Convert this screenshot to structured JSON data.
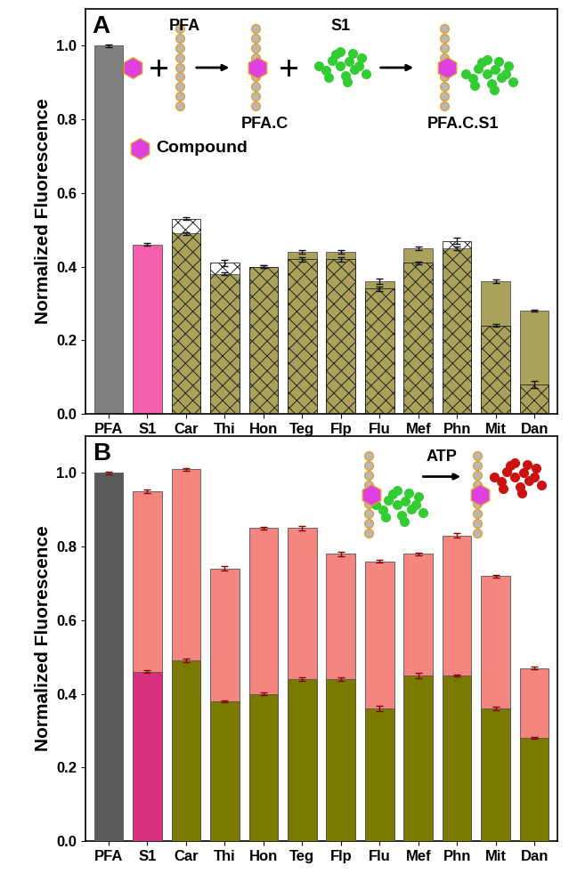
{
  "chart_data": [
    {
      "type": "bar",
      "title": "A",
      "y_label": "Normalized Fluorescence",
      "categories": [
        "PFA",
        "S1",
        "Car",
        "Thi",
        "Hon",
        "Teg",
        "Flp",
        "Flu",
        "Mef",
        "Phn",
        "Mit",
        "Dan"
      ],
      "ylim": [
        0,
        1.1
      ],
      "yticks": [
        {
          "value": 0.0,
          "label": "0.0"
        },
        {
          "value": 0.2,
          "label": "0.2"
        },
        {
          "value": 0.4,
          "label": "0.4"
        },
        {
          "value": 0.6,
          "label": "0.6"
        },
        {
          "value": 0.8,
          "label": "0.8"
        },
        {
          "value": 1.0,
          "label": "1.0"
        }
      ],
      "annotations": [
        "PFA",
        "S1",
        "PFA.C",
        "Compound",
        "PFA.C.S1"
      ],
      "series": [
        {
          "colors": [
            "#808080",
            "#f45fae",
            "#aaa25a",
            "#aaa25a",
            "#aaa25a",
            "#aaa25a",
            "#aaa25a",
            "#aaa25a",
            "#aaa25a",
            "#aaa25a",
            "#aaa25a",
            "#aaa25a"
          ],
          "values": [
            1.0,
            0.46,
            0.49,
            0.38,
            0.4,
            0.44,
            0.44,
            0.36,
            0.45,
            0.45,
            0.36,
            0.28
          ],
          "errors": [
            0.004,
            0.004,
            0.004,
            0.004,
            0.004,
            0.006,
            0.006,
            0.008,
            0.004,
            0.004,
            0.004,
            0.002
          ]
        },
        {
          "color": "#222222",
          "marker": "crosshatch",
          "values": [
            null,
            null,
            0.53,
            0.41,
            0.4,
            0.42,
            0.42,
            0.34,
            0.41,
            0.47,
            0.24,
            0.08
          ],
          "errors": [
            null,
            null,
            0.004,
            0.008,
            0.004,
            0.006,
            0.006,
            0.006,
            0.004,
            0.008,
            0.004,
            0.01
          ]
        }
      ]
    },
    {
      "type": "bar",
      "title": "B",
      "y_label": "Normalized Fluorescence",
      "categories": [
        "PFA",
        "S1",
        "Car",
        "Thi",
        "Hon",
        "Teg",
        "Flp",
        "Flu",
        "Mef",
        "Phn",
        "Mit",
        "Dan"
      ],
      "ylim": [
        0,
        1.1
      ],
      "yticks": [
        {
          "value": 0.0,
          "label": "0.0"
        },
        {
          "value": 0.2,
          "label": "0.2"
        },
        {
          "value": 0.4,
          "label": "0.4"
        },
        {
          "value": 0.6,
          "label": "0.6"
        },
        {
          "value": 0.8,
          "label": "0.8"
        },
        {
          "value": 1.0,
          "label": "1.0"
        }
      ],
      "annotations": [
        "ATP"
      ],
      "series": [
        {
          "color": "#f4857f",
          "values": [
            null,
            0.95,
            1.01,
            0.74,
            0.85,
            0.85,
            0.78,
            0.76,
            0.78,
            0.83,
            0.72,
            0.47
          ],
          "errors": [
            null,
            0.004,
            0.004,
            0.006,
            0.004,
            0.006,
            0.006,
            0.004,
            0.004,
            0.006,
            0.004,
            0.004
          ]
        },
        {
          "colors": [
            "#595959",
            "#d6307f",
            "#7a7a00",
            "#7a7a00",
            "#7a7a00",
            "#7a7a00",
            "#7a7a00",
            "#7a7a00",
            "#7a7a00",
            "#7a7a00",
            "#7a7a00",
            "#7a7a00"
          ],
          "values": [
            1.0,
            0.46,
            0.49,
            0.38,
            0.4,
            0.44,
            0.44,
            0.36,
            0.45,
            0.45,
            0.36,
            0.28
          ],
          "errors": [
            0.003,
            0.003,
            0.005,
            0.003,
            0.004,
            0.005,
            0.005,
            0.008,
            0.008,
            0.003,
            0.005,
            0.002
          ]
        }
      ]
    }
  ]
}
